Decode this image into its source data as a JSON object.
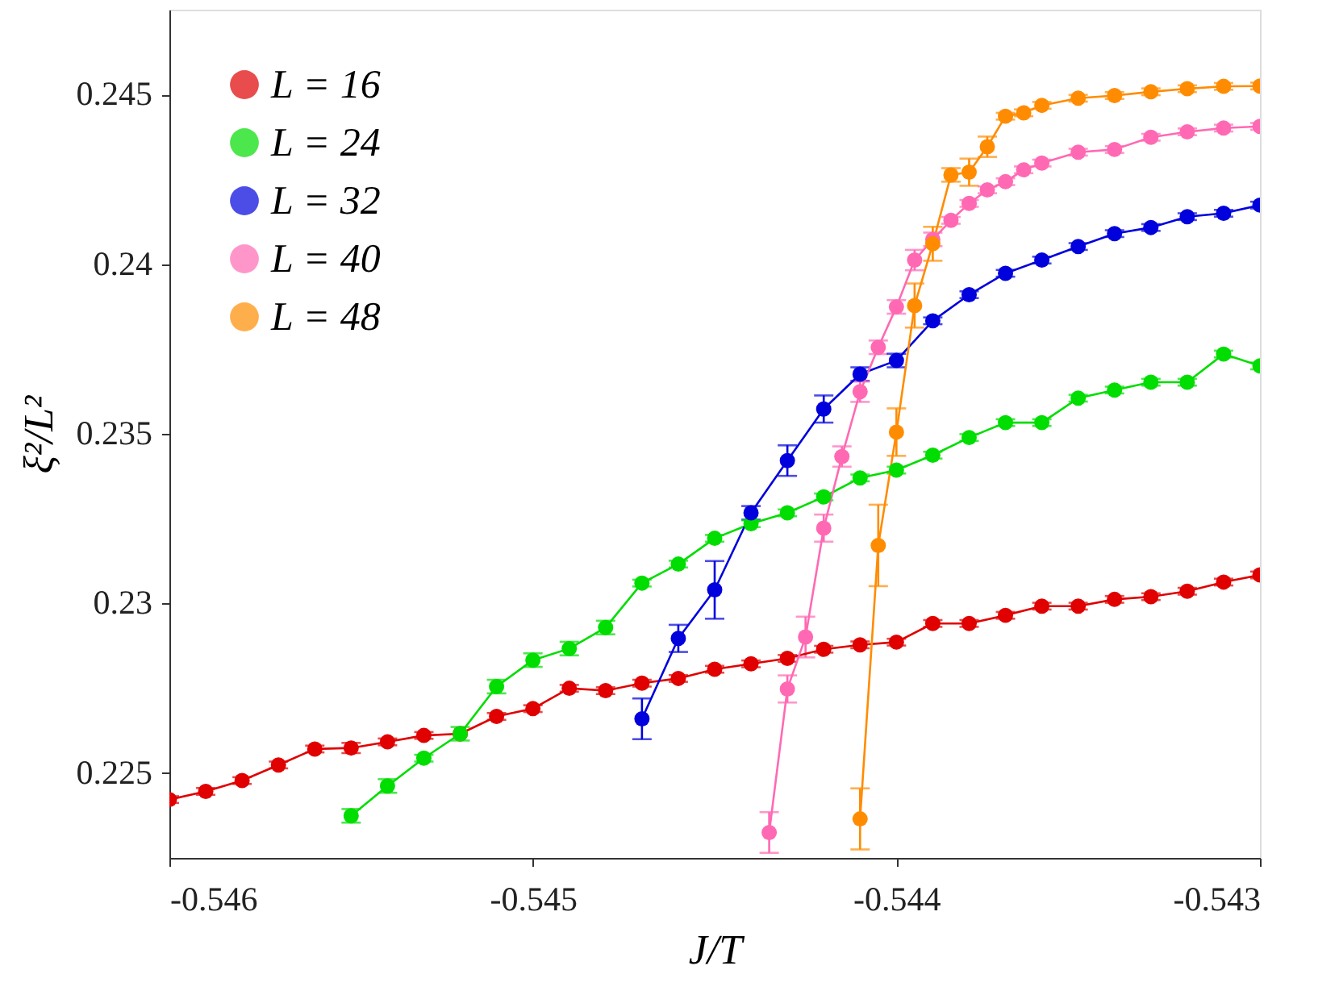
{
  "chart_data": {
    "type": "line",
    "xlabel": "J/T",
    "ylabel": "ξ²/L²",
    "xlim": [
      -0.546,
      -0.543
    ],
    "xticks": [
      -0.546,
      -0.545,
      -0.544,
      -0.543
    ],
    "ylim": [
      0.2225,
      0.2475
    ],
    "yticks": [
      0.225,
      0.23,
      0.235,
      0.24,
      0.245
    ],
    "grid": false,
    "legend": "top left",
    "marker": "circle",
    "line_style": "solid",
    "series": [
      {
        "name": "L = 16",
        "color": "#e00000",
        "x": [
          -0.546,
          -0.5459,
          -0.5458,
          -0.5457,
          -0.5456,
          -0.5455,
          -0.5454,
          -0.5453,
          -0.5452,
          -0.5451,
          -0.545,
          -0.5449,
          -0.5448,
          -0.5447,
          -0.5446,
          -0.5445,
          -0.5444,
          -0.5443,
          -0.5442,
          -0.5441,
          -0.544,
          -0.5439,
          -0.5438,
          -0.5437,
          -0.5436,
          -0.5435,
          -0.5434,
          -0.5433,
          -0.5432,
          -0.5431,
          -0.543
        ],
        "values": [
          0.22422,
          0.22446,
          0.22478,
          0.22524,
          0.22571,
          0.22574,
          0.22592,
          0.22611,
          0.22616,
          0.22667,
          0.2269,
          0.2275,
          0.22743,
          0.22765,
          0.22779,
          0.22806,
          0.22822,
          0.22838,
          0.22865,
          0.22878,
          0.22886,
          0.22941,
          0.22941,
          0.22965,
          0.22992,
          0.22992,
          0.23012,
          0.2302,
          0.23036,
          0.23063,
          0.23084
        ],
        "errors": [
          0.0001,
          0.0001,
          0.0001,
          0.0001,
          0.0001,
          0.00015,
          0.0001,
          0.0001,
          null,
          0.0001,
          0.0001,
          0.0001,
          0.0001,
          0.0001,
          0.0001,
          0.0001,
          0.0001,
          0.0001,
          0.0001,
          0.0001,
          0.0001,
          0.0001,
          0.0001,
          0.0001,
          0.0001,
          0.0001,
          0.0001,
          0.0001,
          0.0001,
          0.0001,
          0.0001
        ]
      },
      {
        "name": "L = 24",
        "color": "#00dd00",
        "x": [
          -0.5455,
          -0.5454,
          -0.5453,
          -0.5452,
          -0.5451,
          -0.545,
          -0.5449,
          -0.5448,
          -0.5447,
          -0.5446,
          -0.5445,
          -0.5444,
          -0.5443,
          -0.5442,
          -0.5441,
          -0.544,
          -0.5439,
          -0.5438,
          -0.5437,
          -0.5436,
          -0.5435,
          -0.5434,
          -0.5433,
          -0.5432,
          -0.5431,
          -0.543
        ],
        "values": [
          0.22374,
          0.22462,
          0.22544,
          0.22616,
          0.22755,
          0.22833,
          0.22867,
          0.22929,
          0.2306,
          0.23116,
          0.23192,
          0.23235,
          0.23267,
          0.23314,
          0.2337,
          0.23393,
          0.23437,
          0.23489,
          0.23533,
          0.23533,
          0.23605,
          0.23629,
          0.23652,
          0.23652,
          0.23735,
          0.237
        ],
        "errors": [
          0.0002,
          0.0002,
          0.0001,
          0.0002,
          0.0002,
          0.0002,
          0.0002,
          0.0002,
          0.0001,
          0.0001,
          0.0001,
          0.0001,
          0.0001,
          0.0001,
          0.0001,
          0.0001,
          0.0001,
          0.0001,
          0.0001,
          0.0001,
          0.0001,
          0.0001,
          0.0001,
          0.0001,
          0.0001,
          0.0001
        ]
      },
      {
        "name": "L = 32",
        "color": "#0000dd",
        "x": [
          -0.5447,
          -0.5446,
          -0.5445,
          -0.5444,
          -0.5443,
          -0.5442,
          -0.5441,
          -0.544,
          -0.5439,
          -0.5438,
          -0.5437,
          -0.5436,
          -0.5435,
          -0.5434,
          -0.5433,
          -0.5432,
          -0.5431,
          -0.543
        ],
        "values": [
          0.2266,
          0.22897,
          0.2304,
          0.23267,
          0.23421,
          0.23573,
          0.23676,
          0.23716,
          0.23833,
          0.2391,
          0.23973,
          0.24012,
          0.24052,
          0.2409,
          0.24108,
          0.2414,
          0.2415,
          0.24174
        ],
        "errors": [
          0.0006,
          0.0004,
          0.00085,
          0.0002,
          0.00045,
          0.0004,
          0.0002,
          0.0002,
          0.0001,
          0.0001,
          0.0001,
          0.0001,
          0.0001,
          0.0001,
          0.0001,
          0.0001,
          0.0001,
          0.0001
        ]
      },
      {
        "name": "L = 40",
        "color": "#ff69b4",
        "x": [
          -0.54435,
          -0.5443,
          -0.54425,
          -0.5442,
          -0.54415,
          -0.5441,
          -0.54405,
          -0.544,
          -0.54395,
          -0.5439,
          -0.54385,
          -0.5438,
          -0.54375,
          -0.5437,
          -0.54365,
          -0.5436,
          -0.5435,
          -0.5434,
          -0.5433,
          -0.5432,
          -0.5431,
          -0.543
        ],
        "values": [
          0.22325,
          0.22748,
          0.22901,
          0.23222,
          0.23433,
          0.23624,
          0.23755,
          0.23874,
          0.24012,
          0.24073,
          0.24129,
          0.24179,
          0.24219,
          0.24243,
          0.24278,
          0.24298,
          0.2433,
          0.24338,
          0.24374,
          0.2439,
          0.24401,
          0.24406
        ],
        "errors": [
          0.0006,
          0.0004,
          0.0006,
          0.0004,
          0.0003,
          0.0003,
          0.0002,
          0.0002,
          0.0003,
          0.0002,
          0.0001,
          0.0001,
          0.0001,
          0.0001,
          0.0001,
          0.0001,
          0.0001,
          0.0001,
          0.0001,
          0.0001,
          0.0001,
          0.0001
        ]
      },
      {
        "name": "L = 48",
        "color": "#ff8c00",
        "x": [
          -0.5441,
          -0.54405,
          -0.544,
          -0.54395,
          -0.5439,
          -0.54385,
          -0.5438,
          -0.54375,
          -0.5437,
          -0.54365,
          -0.5436,
          -0.5435,
          -0.5434,
          -0.5433,
          -0.5432,
          -0.5431,
          -0.543
        ],
        "values": [
          0.22365,
          0.23171,
          0.23505,
          0.23878,
          0.2406,
          0.24263,
          0.24271,
          0.24346,
          0.24436,
          0.24446,
          0.24468,
          0.24489,
          0.24497,
          0.24508,
          0.24517,
          0.24524,
          0.24525
        ],
        "errors": [
          0.0009,
          0.0012,
          0.0007,
          0.00065,
          0.0005,
          0.0002,
          0.0004,
          0.0003,
          0.0001,
          0.0001,
          0.0001,
          0.0001,
          0.0001,
          0.0001,
          0.0001,
          0.0001,
          0.0001
        ]
      }
    ]
  }
}
